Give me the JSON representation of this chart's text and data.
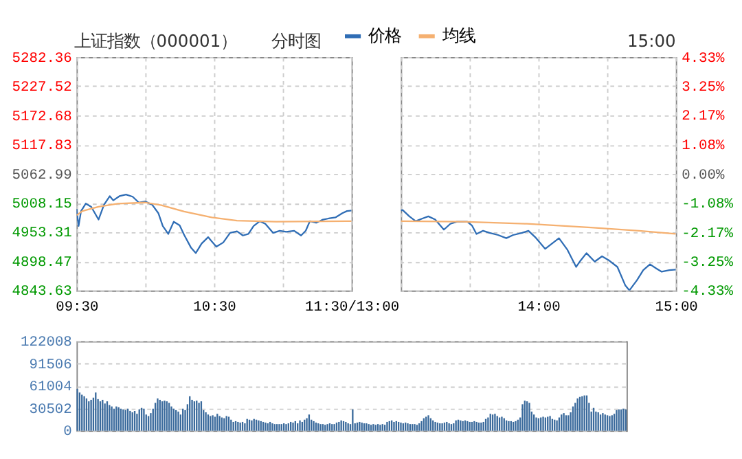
{
  "chart_data": [
    {
      "type": "line",
      "title": "上证指数（000001）",
      "annotations": [
        "分时图"
      ],
      "legend": "top",
      "grid": true,
      "xlim": [
        9.5,
        11.5
      ],
      "xticks": [
        {
          "value": 9.5,
          "label": "09:30"
        },
        {
          "value": 10,
          "label": null
        },
        {
          "value": 10.5,
          "label": "10:30"
        },
        {
          "value": 11,
          "label": null
        },
        {
          "value": 11.5,
          "label": "11:30/13:00"
        }
      ],
      "ylim": [
        4843.63,
        5282.36
      ],
      "yticks": [
        4843.63,
        4898.47,
        4953.31,
        5008.15,
        5062.99,
        5117.83,
        5172.68,
        5227.52,
        5282.36
      ],
      "series": [
        {
          "name": "价格",
          "color": "#2f6db5",
          "x": [
            9.5,
            9.515,
            9.533,
            9.567,
            9.607,
            9.66,
            9.7,
            9.742,
            9.767,
            9.812,
            9.86,
            9.908,
            9.953,
            10,
            10.05,
            10.095,
            10.127,
            10.167,
            10.207,
            10.25,
            10.283,
            10.333,
            10.367,
            10.41,
            10.457,
            10.483,
            10.517,
            10.567,
            10.617,
            10.667,
            10.71,
            10.75,
            10.788,
            10.833,
            10.873,
            10.93,
            10.978,
            11.025,
            11.083,
            11.133,
            11.167,
            11.197,
            11.243,
            11.292,
            11.333,
            11.383,
            11.433,
            11.467,
            11.5
          ],
          "values": [
            4997,
            4965,
            4993,
            5007,
            5001,
            4977,
            5005,
            5021,
            5013,
            5021,
            5024,
            5020,
            5009,
            5011,
            5005,
            4989,
            4965,
            4950,
            4973,
            4966,
            4948,
            4924,
            4914,
            4932,
            4944,
            4936,
            4926,
            4934,
            4952,
            4955,
            4947,
            4950,
            4965,
            4974,
            4969,
            4952,
            4956,
            4954,
            4956,
            4947,
            4956,
            4974,
            4971,
            4977,
            4979,
            4981,
            4989,
            4993,
            4994
          ]
        },
        {
          "name": "均线",
          "color": "#f5b070",
          "x": [
            9.5,
            9.543,
            9.66,
            9.8,
            10,
            10.117,
            10.283,
            10.483,
            10.667,
            10.95,
            11.467,
            11.5
          ],
          "values": [
            4985,
            4993,
            5001,
            5007,
            5009,
            5004,
            4992,
            4981,
            4975,
            4973,
            4974,
            4974
          ]
        }
      ]
    },
    {
      "type": "line",
      "annotations": [
        "15:00"
      ],
      "grid": true,
      "xlim": [
        13,
        15
      ],
      "xticks": [
        {
          "value": 13,
          "label": null
        },
        {
          "value": 13.5,
          "label": null
        },
        {
          "value": 14,
          "label": "14:00"
        },
        {
          "value": 14.5,
          "label": null
        },
        {
          "value": 15,
          "label": "15:00"
        }
      ],
      "ylim": [
        4843.63,
        5282.36
      ],
      "y2lim": [
        -4.33,
        4.33
      ],
      "y2ticks": [
        {
          "value": -4.33,
          "label": "-4.33%"
        },
        {
          "value": -3.25,
          "label": "-3.25%"
        },
        {
          "value": -2.17,
          "label": "-2.17%"
        },
        {
          "value": -1.08,
          "label": "-1.08%"
        },
        {
          "value": 0,
          "label": "0.00%"
        },
        {
          "value": 1.08,
          "label": "1.08%"
        },
        {
          "value": 2.17,
          "label": "2.17%"
        },
        {
          "value": 3.25,
          "label": "3.25%"
        },
        {
          "value": 4.33,
          "label": "4.33%"
        }
      ],
      "series": [
        {
          "color": "#2f6db5",
          "x": [
            13,
            13.013,
            13.062,
            13.108,
            13.157,
            13.2,
            13.25,
            13.313,
            13.36,
            13.408,
            13.483,
            13.517,
            13.55,
            13.598,
            13.645,
            13.707,
            13.767,
            13.817,
            13.882,
            13.928,
            13.977,
            14.05,
            14.1,
            14.15,
            14.212,
            14.275,
            14.307,
            14.35,
            14.41,
            14.463,
            14.51,
            14.575,
            14.633,
            14.662,
            14.717,
            14.763,
            14.812,
            14.858,
            14.897,
            14.953,
            15
          ],
          "values": [
            4994,
            4995,
            4983,
            4974,
            4979,
            4983,
            4977,
            4958,
            4969,
            4973,
            4973,
            4966,
            4950,
            4956,
            4952,
            4948,
            4942,
            4948,
            4952,
            4956,
            4944,
            4922,
            4932,
            4942,
            4920,
            4888,
            4900,
            4914,
            4898,
            4908,
            4901,
            4888,
            4853,
            4844,
            4863,
            4882,
            4893,
            4885,
            4879,
            4882,
            4883
          ]
        },
        {
          "color": "#f5b070",
          "x": [
            13,
            13.45,
            13.917,
            14.383,
            14.733,
            15
          ],
          "values": [
            4974,
            4973,
            4969,
            4962,
            4956,
            4950
          ]
        }
      ]
    },
    {
      "type": "bar",
      "color": "#3a6a9c",
      "grid": "y",
      "ylim": [
        0,
        122008
      ],
      "yticks": [
        0,
        30502,
        61004,
        91506,
        122008
      ],
      "categories": [
        null,
        null,
        null,
        null,
        null,
        null,
        null,
        null,
        null,
        null,
        null,
        null,
        null,
        null,
        null,
        null,
        null,
        null,
        null,
        null,
        null,
        null,
        null,
        null,
        null,
        null,
        null,
        null,
        null,
        null,
        null,
        null,
        null,
        null,
        null,
        null,
        null,
        null,
        null,
        null,
        null,
        null,
        null,
        null,
        null,
        null,
        null,
        null,
        null,
        null,
        null,
        null,
        null,
        null,
        null,
        null,
        null,
        null,
        null,
        null,
        null,
        null,
        null,
        null,
        null,
        null,
        null,
        null,
        null,
        null,
        null,
        null,
        null,
        null,
        null,
        null,
        null,
        null,
        null,
        null,
        null,
        null,
        null,
        null,
        null,
        null,
        null,
        null,
        null,
        null,
        null,
        null,
        null,
        null,
        null,
        null,
        null,
        null,
        null,
        null,
        null,
        null,
        null,
        null,
        null,
        null,
        null,
        null,
        null,
        null,
        null,
        null,
        null,
        null,
        null,
        null,
        null,
        null,
        null,
        null,
        null,
        null,
        null,
        null,
        null,
        null,
        null,
        null,
        null,
        null,
        null,
        null,
        null,
        null,
        null,
        null,
        null,
        null,
        null,
        null,
        null,
        null,
        null,
        null,
        null,
        null,
        null,
        null,
        null,
        null,
        null,
        null,
        null,
        null,
        null,
        null,
        null,
        null,
        null,
        null,
        null,
        null,
        null,
        null,
        null,
        null,
        null,
        null,
        null,
        null,
        null,
        null,
        null,
        null,
        null,
        null,
        null,
        null,
        null,
        null,
        null,
        null,
        null,
        null,
        null,
        null,
        null,
        null,
        null,
        null,
        null,
        null,
        null,
        null,
        null,
        null,
        null,
        null,
        null,
        null,
        null,
        null,
        null,
        null,
        null,
        null,
        null,
        null,
        null,
        null,
        null,
        null,
        null,
        null,
        null,
        null,
        null,
        null,
        null,
        null,
        null,
        null,
        null,
        null,
        null,
        null,
        null,
        null,
        null,
        null,
        null,
        null,
        null,
        null,
        null,
        null,
        null,
        null,
        null,
        null
      ],
      "values": [
        57000,
        52000,
        49000,
        47000,
        44000,
        40000,
        42000,
        45000,
        52000,
        43000,
        40000,
        42000,
        37000,
        40000,
        35000,
        33000,
        30000,
        33000,
        32000,
        30000,
        29000,
        28000,
        30000,
        27000,
        25000,
        27000,
        23000,
        29000,
        31000,
        30000,
        22000,
        20000,
        24000,
        30000,
        38000,
        44000,
        42000,
        40000,
        41000,
        40000,
        38000,
        33000,
        30000,
        28000,
        26000,
        22000,
        30000,
        28000,
        36000,
        47000,
        42000,
        40000,
        41000,
        38000,
        40000,
        28000,
        25000,
        22000,
        20000,
        21000,
        19000,
        23000,
        20000,
        18000,
        17000,
        20000,
        19000,
        15000,
        12000,
        13000,
        12000,
        11000,
        12000,
        10000,
        16000,
        15000,
        14000,
        16000,
        15000,
        14000,
        13000,
        12000,
        11000,
        10000,
        12000,
        10000,
        9000,
        9000,
        9000,
        9000,
        10000,
        9000,
        10000,
        12000,
        11000,
        13000,
        10000,
        14000,
        12000,
        15000,
        17000,
        22000,
        15000,
        13000,
        11000,
        10000,
        9000,
        9000,
        8000,
        9000,
        10000,
        9000,
        9000,
        11000,
        12000,
        14000,
        13000,
        12000,
        10000,
        9000,
        29000,
        10000,
        11000,
        12000,
        11000,
        10000,
        10000,
        9000,
        8000,
        9000,
        8000,
        9000,
        8000,
        9000,
        8000,
        12000,
        13000,
        14000,
        12000,
        13000,
        12000,
        11000,
        10000,
        11000,
        10000,
        9000,
        9000,
        9000,
        8000,
        10000,
        13000,
        17000,
        19000,
        21000,
        17000,
        14000,
        12000,
        11000,
        10000,
        10000,
        11000,
        12000,
        10000,
        9000,
        10000,
        14000,
        15000,
        14000,
        13000,
        14000,
        13000,
        12000,
        12000,
        13000,
        12000,
        11000,
        11000,
        12000,
        16000,
        18000,
        23000,
        22000,
        23000,
        20000,
        18000,
        19000,
        17000,
        14000,
        13000,
        13000,
        12000,
        13000,
        15000,
        18000,
        36000,
        41000,
        40000,
        38000,
        26000,
        22000,
        18000,
        17000,
        18000,
        19000,
        18000,
        19000,
        20000,
        16000,
        15000,
        14000,
        18000,
        22000,
        24000,
        21000,
        21000,
        25000,
        33000,
        38000,
        44000,
        46000,
        47000,
        48000,
        48000,
        38000,
        26000,
        31000,
        26000,
        25000,
        22000,
        24000,
        22000,
        21000,
        20000,
        21000,
        23000,
        28000,
        29000,
        29000,
        30000,
        29000
      ]
    }
  ]
}
